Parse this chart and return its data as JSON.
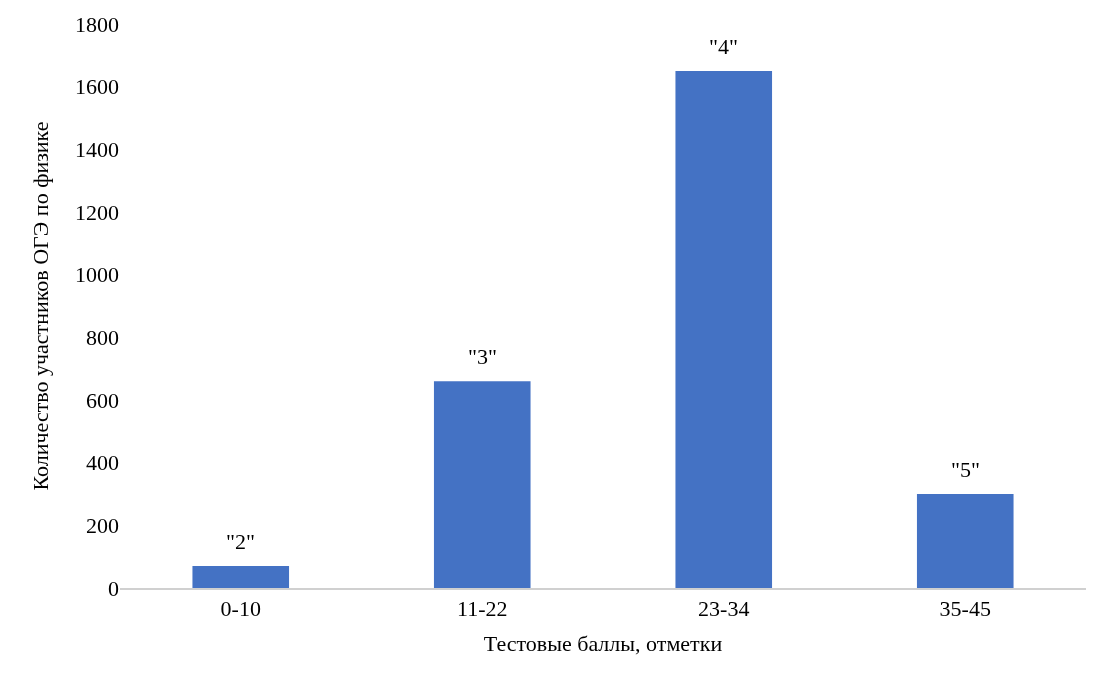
{
  "chart_data": {
    "type": "bar",
    "xlabel": "Тестовые баллы, отметки",
    "ylabel": "Количество участников ОГЭ по физике",
    "categories": [
      "0-10",
      "11-22",
      "23-34",
      "35-45"
    ],
    "values": [
      70,
      660,
      1650,
      300
    ],
    "annotations": [
      {
        "text": "\"2\"",
        "x": "0-10",
        "y": 70
      },
      {
        "text": "\"3\"",
        "x": "11-22",
        "y": 660
      },
      {
        "text": "\"4\"",
        "x": "23-34",
        "y": 1650
      },
      {
        "text": "\"5\"",
        "x": "35-45",
        "y": 300
      }
    ],
    "color": "#4472c4",
    "ylim": [
      0,
      1800
    ],
    "yticks": [
      0,
      200,
      400,
      600,
      800,
      1000,
      1200,
      1400,
      1600,
      1800
    ]
  }
}
